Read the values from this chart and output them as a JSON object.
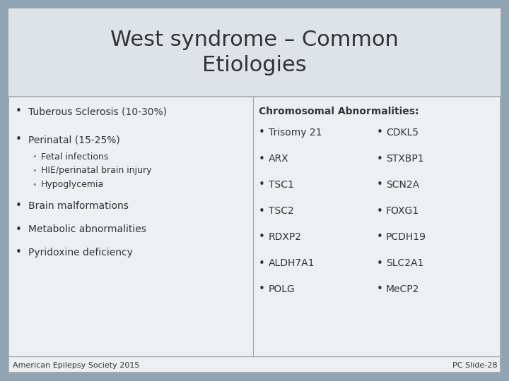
{
  "title_line1": "West syndrome – Common",
  "title_line2": "Etiologies",
  "title_fontsize": 22,
  "title_bg": "#dde3e8",
  "slide_bg": "#8fa5b5",
  "content_bg": "#edf0f3",
  "border_color": "#aaaaaa",
  "text_color": "#333333",
  "sub_bullet_color": "#888888",
  "left_bullets": [
    {
      "text": "Tuberous Sclerosis (10-30%)",
      "level": 0
    },
    {
      "text": "Perinatal (15-25%)",
      "level": 0
    },
    {
      "text": "Fetal infections",
      "level": 1
    },
    {
      "text": "HIE/perinatal brain injury",
      "level": 1
    },
    {
      "text": "Hypoglycemia",
      "level": 1
    },
    {
      "text": "Brain malformations",
      "level": 0
    },
    {
      "text": "Metabolic abnormalities",
      "level": 0
    },
    {
      "text": "Pyridoxine deficiency",
      "level": 0
    }
  ],
  "chrom_header": "Chromosomal Abnormalities:",
  "chrom_col1": [
    "Trisomy 21",
    "ARX",
    "TSC1",
    "TSC2",
    "RDXP2",
    "ALDH7A1",
    "POLG"
  ],
  "chrom_col2_items": [
    {
      "text": "CDKL5",
      "row": 2
    },
    {
      "text": "STXBP1",
      "row": 3
    },
    {
      "text": "SCN2A",
      "row": 4
    },
    {
      "text": "FOXG1",
      "row": 5
    },
    {
      "text": "PCDH19",
      "row": 6
    },
    {
      "text": "SLC2A1",
      "row": 7
    },
    {
      "text": "MeCP2",
      "row": 8
    }
  ],
  "footer_left": "American Epilepsy Society 2015",
  "footer_right": "PC Slide-28",
  "footer_fontsize": 8,
  "main_fs": 10,
  "sub_fs": 9,
  "chrom_header_fs": 10,
  "chrom_item_fs": 10
}
